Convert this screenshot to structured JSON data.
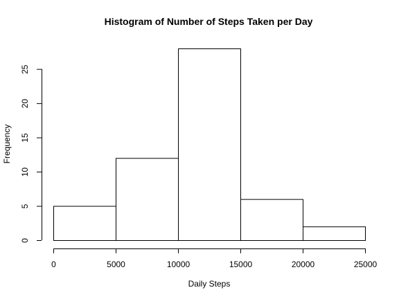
{
  "chart_data": {
    "type": "bar",
    "title": "Histogram of Number of Steps Taken per Day",
    "xlabel": "Daily Steps",
    "ylabel": "Frequency",
    "bins": [
      {
        "from": 0,
        "to": 5000,
        "count": 5
      },
      {
        "from": 5000,
        "to": 10000,
        "count": 12
      },
      {
        "from": 10000,
        "to": 15000,
        "count": 28
      },
      {
        "from": 15000,
        "to": 20000,
        "count": 6
      },
      {
        "from": 20000,
        "to": 25000,
        "count": 2
      }
    ],
    "xlim": [
      0,
      25000
    ],
    "ylim": [
      0,
      28
    ],
    "x_ticks": [
      0,
      5000,
      10000,
      15000,
      20000,
      25000
    ],
    "y_ticks": [
      0,
      5,
      10,
      15,
      20,
      25
    ],
    "grid": false,
    "legend": "none",
    "colors": {
      "bar_fill": "#ffffff",
      "bar_stroke": "#000000"
    }
  }
}
